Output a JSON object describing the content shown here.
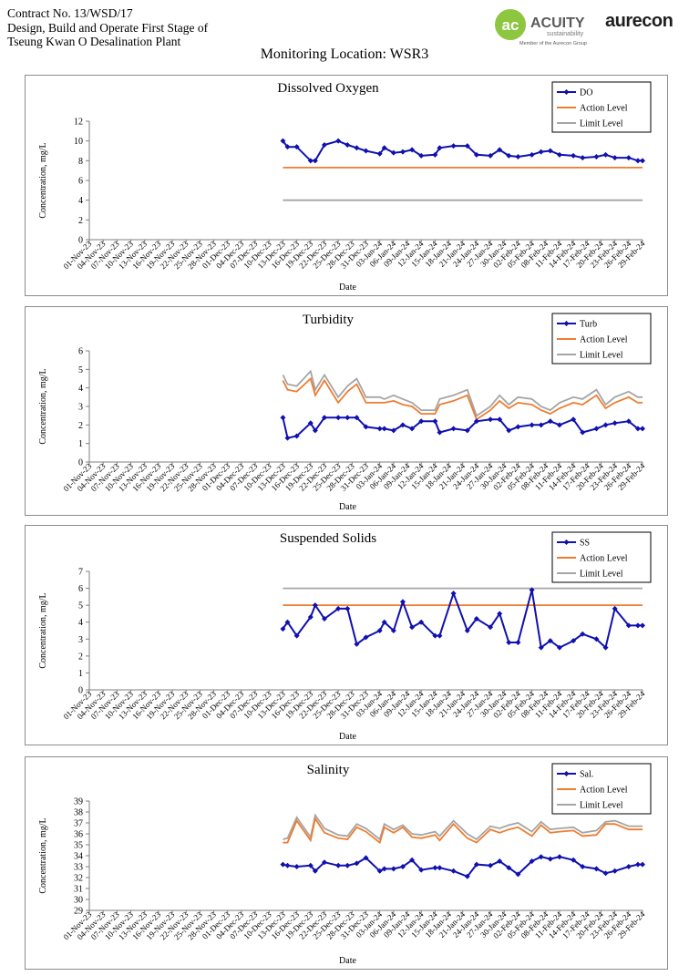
{
  "header": {
    "line1": "Contract No. 13/WSD/17",
    "line2": "Design, Build and Operate First Stage of",
    "line3": "Tseung Kwan O Desalination Plant",
    "logo_acuity_name": "ACUITY",
    "logo_acuity_sub": "sustainability",
    "logo_acuity_member": "Member of the Aurecon Group",
    "logo_aurecon": "aurecon"
  },
  "monitoring_location": "Monitoring Location: WSR3",
  "colors": {
    "series": "#1010b0",
    "action": "#ed7d31",
    "limit": "#a5a5a5"
  },
  "chart_data": [
    {
      "type": "line",
      "title": "Dissolved Oxygen",
      "xlabel": "Date",
      "ylabel": "Concentration, mg/L",
      "ylim": [
        0,
        12
      ],
      "yticks": [
        0,
        2,
        4,
        6,
        8,
        10,
        12
      ],
      "legend": "top-right",
      "x_tick_labels": [
        "01-Nov-23",
        "04-Nov-23",
        "07-Nov-23",
        "10-Nov-23",
        "13-Nov-23",
        "16-Nov-23",
        "19-Nov-23",
        "22-Nov-23",
        "25-Nov-23",
        "28-Nov-23",
        "01-Dec-23",
        "04-Dec-23",
        "07-Dec-23",
        "10-Dec-23",
        "13-Dec-23",
        "16-Dec-23",
        "19-Dec-23",
        "22-Dec-23",
        "25-Dec-23",
        "28-Dec-23",
        "31-Dec-23",
        "03-Jan-24",
        "06-Jan-24",
        "09-Jan-24",
        "12-Jan-24",
        "15-Jan-24",
        "18-Jan-24",
        "21-Jan-24",
        "24-Jan-24",
        "27-Jan-24",
        "30-Jan-24",
        "02-Feb-24",
        "05-Feb-24",
        "08-Feb-24",
        "11-Feb-24",
        "14-Feb-24",
        "17-Feb-24",
        "20-Feb-24",
        "23-Feb-24",
        "26-Feb-24",
        "29-Feb-24"
      ],
      "x": [
        "13-Dec-23",
        "14-Dec-23",
        "16-Dec-23",
        "19-Dec-23",
        "20-Dec-23",
        "22-Dec-23",
        "25-Dec-23",
        "27-Dec-23",
        "29-Dec-23",
        "31-Dec-23",
        "03-Jan-24",
        "04-Jan-24",
        "06-Jan-24",
        "08-Jan-24",
        "10-Jan-24",
        "12-Jan-24",
        "15-Jan-24",
        "16-Jan-24",
        "19-Jan-24",
        "22-Jan-24",
        "24-Jan-24",
        "27-Jan-24",
        "29-Jan-24",
        "31-Jan-24",
        "02-Feb-24",
        "05-Feb-24",
        "07-Feb-24",
        "09-Feb-24",
        "11-Feb-24",
        "14-Feb-24",
        "16-Feb-24",
        "19-Feb-24",
        "21-Feb-24",
        "23-Feb-24",
        "26-Feb-24",
        "28-Feb-24",
        "29-Feb-24"
      ],
      "series": [
        {
          "name": "DO",
          "values": [
            10.0,
            9.4,
            9.4,
            8.0,
            8.0,
            9.6,
            10.0,
            9.6,
            9.3,
            9.0,
            8.7,
            9.3,
            8.8,
            8.9,
            9.1,
            8.5,
            8.6,
            9.3,
            9.5,
            9.5,
            8.6,
            8.5,
            9.1,
            8.5,
            8.4,
            8.6,
            8.9,
            9.0,
            8.6,
            8.5,
            8.3,
            8.4,
            8.6,
            8.3,
            8.3,
            8.0,
            8.0
          ]
        },
        {
          "name": "Action Level",
          "values": [
            7.3,
            7.3,
            7.3,
            7.3,
            7.3,
            7.3,
            7.3,
            7.3,
            7.3,
            7.3,
            7.3,
            7.3,
            7.3,
            7.3,
            7.3,
            7.3,
            7.3,
            7.3,
            7.3,
            7.3,
            7.3,
            7.3,
            7.3,
            7.3,
            7.3,
            7.3,
            7.3,
            7.3,
            7.3,
            7.3,
            7.3,
            7.3,
            7.3,
            7.3,
            7.3,
            7.3,
            7.3
          ]
        },
        {
          "name": "Limit Level",
          "values": [
            4.0,
            4.0,
            4.0,
            4.0,
            4.0,
            4.0,
            4.0,
            4.0,
            4.0,
            4.0,
            4.0,
            4.0,
            4.0,
            4.0,
            4.0,
            4.0,
            4.0,
            4.0,
            4.0,
            4.0,
            4.0,
            4.0,
            4.0,
            4.0,
            4.0,
            4.0,
            4.0,
            4.0,
            4.0,
            4.0,
            4.0,
            4.0,
            4.0,
            4.0,
            4.0,
            4.0,
            4.0
          ]
        }
      ]
    },
    {
      "type": "line",
      "title": "Turbidity",
      "xlabel": "Date",
      "ylabel": "Concentration, mg/L",
      "ylim": [
        0,
        6
      ],
      "yticks": [
        0,
        1,
        2,
        3,
        4,
        5,
        6
      ],
      "legend": "top-right",
      "x_tick_labels": [
        "01-Nov-23",
        "04-Nov-23",
        "07-Nov-23",
        "10-Nov-23",
        "13-Nov-23",
        "16-Nov-23",
        "19-Nov-23",
        "22-Nov-23",
        "25-Nov-23",
        "28-Nov-23",
        "01-Dec-23",
        "04-Dec-23",
        "07-Dec-23",
        "10-Dec-23",
        "13-Dec-23",
        "16-Dec-23",
        "19-Dec-23",
        "22-Dec-23",
        "25-Dec-23",
        "28-Dec-23",
        "31-Dec-23",
        "03-Jan-24",
        "06-Jan-24",
        "09-Jan-24",
        "12-Jan-24",
        "15-Jan-24",
        "18-Jan-24",
        "21-Jan-24",
        "24-Jan-24",
        "27-Jan-24",
        "30-Jan-24",
        "02-Feb-24",
        "05-Feb-24",
        "08-Feb-24",
        "11-Feb-24",
        "14-Feb-24",
        "17-Feb-24",
        "20-Feb-24",
        "23-Feb-24",
        "26-Feb-24",
        "29-Feb-24"
      ],
      "x": [
        "13-Dec-23",
        "14-Dec-23",
        "16-Dec-23",
        "19-Dec-23",
        "20-Dec-23",
        "22-Dec-23",
        "25-Dec-23",
        "27-Dec-23",
        "29-Dec-23",
        "31-Dec-23",
        "03-Jan-24",
        "04-Jan-24",
        "06-Jan-24",
        "08-Jan-24",
        "10-Jan-24",
        "12-Jan-24",
        "15-Jan-24",
        "16-Jan-24",
        "19-Jan-24",
        "22-Jan-24",
        "24-Jan-24",
        "27-Jan-24",
        "29-Jan-24",
        "31-Jan-24",
        "02-Feb-24",
        "05-Feb-24",
        "07-Feb-24",
        "09-Feb-24",
        "11-Feb-24",
        "14-Feb-24",
        "16-Feb-24",
        "19-Feb-24",
        "21-Feb-24",
        "23-Feb-24",
        "26-Feb-24",
        "28-Feb-24",
        "29-Feb-24"
      ],
      "series": [
        {
          "name": "Turb",
          "values": [
            2.4,
            1.3,
            1.4,
            2.1,
            1.7,
            2.4,
            2.4,
            2.4,
            2.4,
            1.9,
            1.8,
            1.8,
            1.7,
            2.0,
            1.8,
            2.2,
            2.2,
            1.6,
            1.8,
            1.7,
            2.2,
            2.3,
            2.3,
            1.7,
            1.9,
            2.0,
            2.0,
            2.2,
            2.0,
            2.3,
            1.6,
            1.8,
            2.0,
            2.1,
            2.2,
            1.8,
            1.8
          ]
        },
        {
          "name": "Action Level",
          "values": [
            4.4,
            3.9,
            3.8,
            4.5,
            3.6,
            4.4,
            3.2,
            3.8,
            4.2,
            3.2,
            3.2,
            3.2,
            3.3,
            3.1,
            3.0,
            2.6,
            2.6,
            3.1,
            3.3,
            3.6,
            2.3,
            2.8,
            3.3,
            2.9,
            3.2,
            3.1,
            2.8,
            2.6,
            2.9,
            3.2,
            3.1,
            3.6,
            2.9,
            3.2,
            3.5,
            3.2,
            3.2
          ]
        },
        {
          "name": "Limit Level",
          "values": [
            4.7,
            4.2,
            4.1,
            4.9,
            3.9,
            4.7,
            3.5,
            4.1,
            4.5,
            3.5,
            3.5,
            3.4,
            3.6,
            3.4,
            3.2,
            2.8,
            2.8,
            3.4,
            3.6,
            3.9,
            2.5,
            3.0,
            3.6,
            3.1,
            3.5,
            3.4,
            3.0,
            2.8,
            3.2,
            3.5,
            3.4,
            3.9,
            3.1,
            3.5,
            3.8,
            3.5,
            3.5
          ]
        }
      ]
    },
    {
      "type": "line",
      "title": "Suspended Solids",
      "xlabel": "Date",
      "ylabel": "Concentration, mg/L",
      "ylim": [
        0,
        7
      ],
      "yticks": [
        0,
        1,
        2,
        3,
        4,
        5,
        6,
        7
      ],
      "legend": "top-right",
      "x_tick_labels": [
        "01-Nov-23",
        "04-Nov-23",
        "07-Nov-23",
        "10-Nov-23",
        "13-Nov-23",
        "16-Nov-23",
        "19-Nov-23",
        "22-Nov-23",
        "25-Nov-23",
        "28-Nov-23",
        "01-Dec-23",
        "04-Dec-23",
        "07-Dec-23",
        "10-Dec-23",
        "13-Dec-23",
        "16-Dec-23",
        "19-Dec-23",
        "22-Dec-23",
        "25-Dec-23",
        "28-Dec-23",
        "31-Dec-23",
        "03-Jan-24",
        "06-Jan-24",
        "09-Jan-24",
        "12-Jan-24",
        "15-Jan-24",
        "18-Jan-24",
        "21-Jan-24",
        "24-Jan-24",
        "27-Jan-24",
        "30-Jan-24",
        "02-Feb-24",
        "05-Feb-24",
        "08-Feb-24",
        "11-Feb-24",
        "14-Feb-24",
        "17-Feb-24",
        "20-Feb-24",
        "23-Feb-24",
        "26-Feb-24",
        "29-Feb-24"
      ],
      "x": [
        "13-Dec-23",
        "14-Dec-23",
        "16-Dec-23",
        "19-Dec-23",
        "20-Dec-23",
        "22-Dec-23",
        "25-Dec-23",
        "27-Dec-23",
        "29-Dec-23",
        "31-Dec-23",
        "03-Jan-24",
        "04-Jan-24",
        "06-Jan-24",
        "08-Jan-24",
        "10-Jan-24",
        "12-Jan-24",
        "15-Jan-24",
        "16-Jan-24",
        "19-Jan-24",
        "22-Jan-24",
        "24-Jan-24",
        "27-Jan-24",
        "29-Jan-24",
        "31-Jan-24",
        "02-Feb-24",
        "05-Feb-24",
        "07-Feb-24",
        "09-Feb-24",
        "11-Feb-24",
        "14-Feb-24",
        "16-Feb-24",
        "19-Feb-24",
        "21-Feb-24",
        "23-Feb-24",
        "26-Feb-24",
        "28-Feb-24",
        "29-Feb-24"
      ],
      "series": [
        {
          "name": "SS",
          "values": [
            3.6,
            4.0,
            3.2,
            4.3,
            5.0,
            4.2,
            4.8,
            4.8,
            2.7,
            3.1,
            3.5,
            4.0,
            3.5,
            5.2,
            3.7,
            4.0,
            3.2,
            3.2,
            5.7,
            3.5,
            4.2,
            3.7,
            4.5,
            2.8,
            2.8,
            5.9,
            2.5,
            2.9,
            2.5,
            2.9,
            3.3,
            3.0,
            2.5,
            4.8,
            3.8,
            3.8,
            3.8
          ]
        },
        {
          "name": "Action Level",
          "values": [
            5.0,
            5.0,
            5.0,
            5.0,
            5.0,
            5.0,
            5.0,
            5.0,
            5.0,
            5.0,
            5.0,
            5.0,
            5.0,
            5.0,
            5.0,
            5.0,
            5.0,
            5.0,
            5.0,
            5.0,
            5.0,
            5.0,
            5.0,
            5.0,
            5.0,
            5.0,
            5.0,
            5.0,
            5.0,
            5.0,
            5.0,
            5.0,
            5.0,
            5.0,
            5.0,
            5.0,
            5.0
          ]
        },
        {
          "name": "Limit Level",
          "values": [
            6.0,
            6.0,
            6.0,
            6.0,
            6.0,
            6.0,
            6.0,
            6.0,
            6.0,
            6.0,
            6.0,
            6.0,
            6.0,
            6.0,
            6.0,
            6.0,
            6.0,
            6.0,
            6.0,
            6.0,
            6.0,
            6.0,
            6.0,
            6.0,
            6.0,
            6.0,
            6.0,
            6.0,
            6.0,
            6.0,
            6.0,
            6.0,
            6.0,
            6.0,
            6.0,
            6.0,
            6.0
          ]
        }
      ]
    },
    {
      "type": "line",
      "title": "Salinity",
      "xlabel": "Date",
      "ylabel": "Concentration, mg/L",
      "ylim": [
        29,
        39
      ],
      "yticks": [
        29,
        30,
        31,
        32,
        33,
        34,
        35,
        36,
        37,
        38,
        39
      ],
      "legend": "top-right",
      "x_tick_labels": [
        "01-Nov-23",
        "04-Nov-23",
        "07-Nov-23",
        "10-Nov-23",
        "13-Nov-23",
        "16-Nov-23",
        "19-Nov-23",
        "22-Nov-23",
        "25-Nov-23",
        "28-Nov-23",
        "01-Dec-23",
        "04-Dec-23",
        "07-Dec-23",
        "10-Dec-23",
        "13-Dec-23",
        "16-Dec-23",
        "19-Dec-23",
        "22-Dec-23",
        "25-Dec-23",
        "28-Dec-23",
        "31-Dec-23",
        "03-Jan-24",
        "06-Jan-24",
        "09-Jan-24",
        "12-Jan-24",
        "15-Jan-24",
        "18-Jan-24",
        "21-Jan-24",
        "24-Jan-24",
        "27-Jan-24",
        "30-Jan-24",
        "02-Feb-24",
        "05-Feb-24",
        "08-Feb-24",
        "11-Feb-24",
        "14-Feb-24",
        "17-Feb-24",
        "20-Feb-24",
        "23-Feb-24",
        "26-Feb-24",
        "29-Feb-24"
      ],
      "x": [
        "13-Dec-23",
        "14-Dec-23",
        "16-Dec-23",
        "19-Dec-23",
        "20-Dec-23",
        "22-Dec-23",
        "25-Dec-23",
        "27-Dec-23",
        "29-Dec-23",
        "31-Dec-23",
        "03-Jan-24",
        "04-Jan-24",
        "06-Jan-24",
        "08-Jan-24",
        "10-Jan-24",
        "12-Jan-24",
        "15-Jan-24",
        "16-Jan-24",
        "19-Jan-24",
        "22-Jan-24",
        "24-Jan-24",
        "27-Jan-24",
        "29-Jan-24",
        "31-Jan-24",
        "02-Feb-24",
        "05-Feb-24",
        "07-Feb-24",
        "09-Feb-24",
        "11-Feb-24",
        "14-Feb-24",
        "16-Feb-24",
        "19-Feb-24",
        "21-Feb-24",
        "23-Feb-24",
        "26-Feb-24",
        "28-Feb-24",
        "29-Feb-24"
      ],
      "series": [
        {
          "name": "Sal.",
          "values": [
            33.2,
            33.1,
            33.0,
            33.1,
            32.6,
            33.4,
            33.1,
            33.1,
            33.3,
            33.8,
            32.6,
            32.8,
            32.8,
            33.0,
            33.6,
            32.7,
            32.9,
            32.9,
            32.6,
            32.1,
            33.2,
            33.1,
            33.5,
            32.9,
            32.3,
            33.5,
            33.9,
            33.7,
            33.9,
            33.6,
            33.0,
            32.8,
            32.4,
            32.6,
            33.0,
            33.2,
            33.2
          ]
        },
        {
          "name": "Action Level",
          "values": [
            35.2,
            35.2,
            37.2,
            35.4,
            37.4,
            36.1,
            35.6,
            35.5,
            36.6,
            36.2,
            35.2,
            36.6,
            36.1,
            36.6,
            35.7,
            35.6,
            35.9,
            35.4,
            36.9,
            35.6,
            35.2,
            36.4,
            36.1,
            36.4,
            36.6,
            35.8,
            36.8,
            36.1,
            36.2,
            36.3,
            35.8,
            35.9,
            36.9,
            36.9,
            36.4,
            36.4,
            36.4
          ]
        },
        {
          "name": "Limit Level",
          "values": [
            35.5,
            35.6,
            37.5,
            35.7,
            37.7,
            36.5,
            35.9,
            35.8,
            36.9,
            36.5,
            35.5,
            36.9,
            36.4,
            36.8,
            36.0,
            35.9,
            36.2,
            35.8,
            37.2,
            36.0,
            35.5,
            36.7,
            36.5,
            36.8,
            37.0,
            36.2,
            37.1,
            36.4,
            36.5,
            36.6,
            36.1,
            36.3,
            37.1,
            37.2,
            36.7,
            36.7,
            36.7
          ]
        }
      ]
    }
  ]
}
